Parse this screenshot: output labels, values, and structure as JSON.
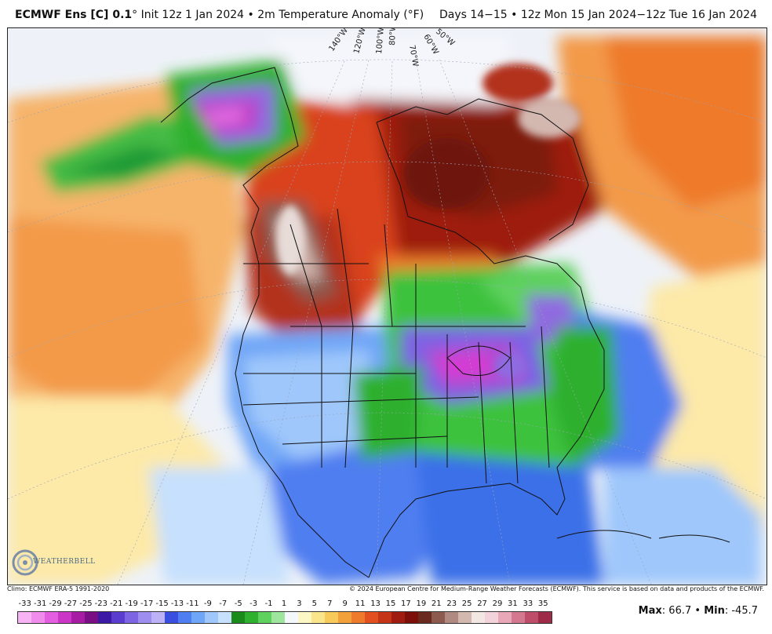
{
  "header": {
    "title_bold": "ECMWF Ens [C] 0.1",
    "title_rest": "° Init 12z 1 Jan 2024 • 2m Temperature Anomaly (°F)",
    "valid": "Days 14−15 • 12z Mon 15 Jan 2024−12z Tue 16 Jan 2024"
  },
  "map": {
    "longitude_labels": [
      "140°W",
      "120°W",
      "100°W",
      "80°W",
      "70°W",
      "60°W",
      "50°W"
    ],
    "region": "North America"
  },
  "footer": {
    "climo": "Climo: ECMWF ERA-5 1991-2020",
    "copyright": "© 2024 European Centre for Medium-Range Weather Forecasts (ECMWF). This service is based on data and products of the ECMWF.",
    "max_label": "Max",
    "max_value": ": 66.7",
    "min_label": "Min",
    "min_value": ": -45.7",
    "separator": " • "
  },
  "logo": {
    "text": "WEATHERBELL"
  },
  "legend": {
    "ticks": [
      "-33",
      "-31",
      "-29",
      "-27",
      "-25",
      "-23",
      "-21",
      "-19",
      "-17",
      "-15",
      "-13",
      "-11",
      "-9",
      "-7",
      "-5",
      "-3",
      "-1",
      "1",
      "3",
      "5",
      "7",
      "9",
      "11",
      "13",
      "15",
      "17",
      "19",
      "21",
      "23",
      "25",
      "27",
      "29",
      "31",
      "33",
      "35"
    ],
    "colors": [
      "#f7b3f4",
      "#f08cec",
      "#e35ee0",
      "#cb36c6",
      "#a61da4",
      "#7a0f85",
      "#3d1aa6",
      "#5a3ccf",
      "#7d64e3",
      "#9e8ef0",
      "#bdb2f6",
      "#3a4fdf",
      "#4f7ef0",
      "#6fa6f7",
      "#9fc7fb",
      "#c6e0fd",
      "#1a8a1a",
      "#2fb02f",
      "#5ed15e",
      "#9ee59e",
      "#f4f7fb",
      "#fdf7c6",
      "#fbe58a",
      "#f8ca5a",
      "#f3a23b",
      "#ee7a2c",
      "#e2501f",
      "#c53417",
      "#a01c10",
      "#7d0f0b",
      "#6b2a20",
      "#8c5a4e",
      "#b08a80",
      "#d3b8b0",
      "#f3e7e3",
      "#f2d3dc",
      "#e8a8b8",
      "#d47890",
      "#bd4d68",
      "#9e2b47"
    ]
  }
}
